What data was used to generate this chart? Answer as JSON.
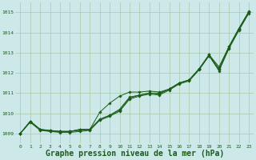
{
  "background_color": "#cce8e8",
  "plot_bg_color": "#cce8e8",
  "grid_color": "#aac8aa",
  "line_color": "#1a5c1a",
  "marker_color": "#1a5c1a",
  "xlabel": "Graphe pression niveau de la mer (hPa)",
  "xlabel_fontsize": 7.0,
  "ylim": [
    1008.5,
    1015.5
  ],
  "xlim": [
    -0.5,
    23.5
  ],
  "yticks": [
    1009,
    1010,
    1011,
    1012,
    1013,
    1014,
    1015
  ],
  "xticks": [
    0,
    1,
    2,
    3,
    4,
    5,
    6,
    7,
    8,
    9,
    10,
    11,
    12,
    13,
    14,
    15,
    16,
    17,
    18,
    19,
    20,
    21,
    22,
    23
  ],
  "line1": [
    1009.0,
    1009.6,
    1009.2,
    1009.15,
    1009.1,
    1009.1,
    1009.2,
    1009.2,
    1009.7,
    1009.9,
    1010.2,
    1010.8,
    1010.9,
    1011.0,
    1010.95,
    1011.2,
    1011.5,
    1011.65,
    1012.2,
    1012.9,
    1012.2,
    1013.3,
    1014.2,
    1015.0
  ],
  "line2": [
    1009.0,
    1009.6,
    1009.2,
    1009.15,
    1009.1,
    1009.1,
    1009.2,
    1009.2,
    1009.7,
    1009.9,
    1010.15,
    1010.75,
    1010.9,
    1011.0,
    1011.0,
    1011.2,
    1011.5,
    1011.65,
    1012.2,
    1012.85,
    1012.15,
    1013.25,
    1014.15,
    1015.0
  ],
  "line3": [
    1009.0,
    1009.6,
    1009.2,
    1009.1,
    1009.1,
    1009.1,
    1009.15,
    1009.2,
    1010.05,
    1010.5,
    1010.85,
    1011.05,
    1011.05,
    1011.1,
    1011.05,
    1011.2,
    1011.5,
    1011.65,
    1012.2,
    1012.9,
    1012.3,
    1013.3,
    1014.2,
    1015.05
  ],
  "line4": [
    1009.0,
    1009.55,
    1009.15,
    1009.1,
    1009.05,
    1009.05,
    1009.1,
    1009.15,
    1009.65,
    1009.85,
    1010.1,
    1010.7,
    1010.85,
    1010.95,
    1010.9,
    1011.15,
    1011.45,
    1011.6,
    1012.15,
    1012.85,
    1012.1,
    1013.2,
    1014.1,
    1014.95
  ]
}
